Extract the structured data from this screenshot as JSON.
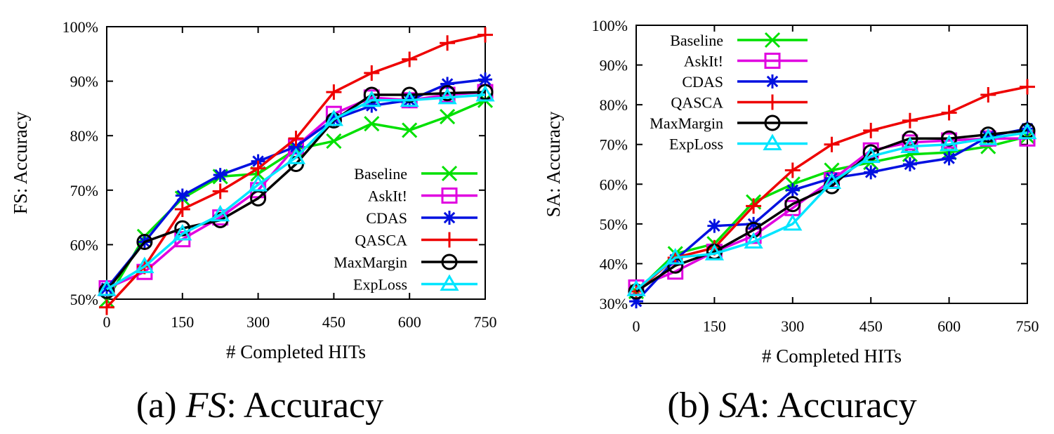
{
  "chart_data": [
    {
      "type": "line",
      "caption": {
        "prefix": "(a)",
        "italic": "FS",
        "rest": ": Accuracy"
      },
      "xlabel": "# Completed HITs",
      "ylabel": "FS: Accuracy",
      "xlim": [
        0,
        750
      ],
      "ylim": [
        50,
        100
      ],
      "x_ticks": [
        "0",
        "150",
        "300",
        "450",
        "600",
        "750"
      ],
      "y_ticks": [
        "50%",
        "60%",
        "70%",
        "80%",
        "90%",
        "100%"
      ],
      "grid": false,
      "legend_position": "bottom-right",
      "x": [
        0,
        75,
        150,
        225,
        300,
        375,
        450,
        525,
        600,
        675,
        750
      ],
      "series": [
        {
          "name": "Baseline",
          "color": "#00e000",
          "marker": "x",
          "values": [
            49.8,
            61.5,
            68.5,
            72.5,
            73.0,
            77.5,
            79.0,
            82.2,
            81.0,
            83.5,
            86.5
          ]
        },
        {
          "name": "AskIt!",
          "color": "#e000e0",
          "marker": "square",
          "values": [
            52.0,
            55.0,
            61.0,
            65.0,
            70.0,
            78.0,
            84.0,
            87.0,
            86.5,
            87.5,
            88.0
          ]
        },
        {
          "name": "CDAS",
          "color": "#0010e0",
          "marker": "asterisk",
          "values": [
            52.0,
            60.5,
            69.0,
            72.8,
            75.3,
            78.0,
            83.0,
            85.5,
            86.5,
            89.5,
            90.3
          ]
        },
        {
          "name": "QASCA",
          "color": "#ee0000",
          "marker": "plus",
          "values": [
            48.5,
            56.0,
            66.5,
            69.8,
            74.0,
            79.5,
            88.0,
            91.5,
            94.0,
            97.0,
            98.5
          ]
        },
        {
          "name": "MaxMargin",
          "color": "#000000",
          "marker": "circle",
          "values": [
            51.5,
            60.5,
            63.0,
            64.5,
            68.5,
            74.8,
            82.8,
            87.5,
            87.5,
            87.8,
            88.0
          ]
        },
        {
          "name": "ExpLoss",
          "color": "#00e5ff",
          "marker": "triangle",
          "values": [
            51.8,
            56.0,
            62.0,
            65.5,
            71.0,
            76.0,
            83.0,
            86.5,
            86.5,
            87.0,
            87.5
          ]
        }
      ]
    },
    {
      "type": "line",
      "caption": {
        "prefix": "(b)",
        "italic": "SA",
        "rest": ": Accuracy"
      },
      "xlabel": "# Completed HITs",
      "ylabel": "SA: Accuracy",
      "xlim": [
        0,
        750
      ],
      "ylim": [
        30,
        100
      ],
      "x_ticks": [
        "0",
        "150",
        "300",
        "450",
        "600",
        "750"
      ],
      "y_ticks": [
        "30%",
        "40%",
        "50%",
        "60%",
        "70%",
        "80%",
        "90%",
        "100%"
      ],
      "grid": false,
      "legend_position": "top-left",
      "x": [
        0,
        75,
        150,
        225,
        300,
        375,
        450,
        525,
        600,
        675,
        750
      ],
      "series": [
        {
          "name": "Baseline",
          "color": "#00e000",
          "marker": "x",
          "values": [
            33.0,
            42.5,
            45.0,
            55.5,
            60.0,
            63.5,
            65.5,
            67.5,
            68.0,
            69.5,
            72.0
          ]
        },
        {
          "name": "AskIt!",
          "color": "#e000e0",
          "marker": "square",
          "values": [
            34.0,
            38.0,
            43.0,
            47.0,
            54.0,
            61.0,
            68.5,
            70.5,
            71.0,
            71.5,
            71.5
          ]
        },
        {
          "name": "CDAS",
          "color": "#0010e0",
          "marker": "asterisk",
          "values": [
            30.5,
            41.0,
            49.5,
            50.0,
            58.5,
            61.5,
            63.0,
            65.0,
            66.5,
            72.0,
            74.0
          ]
        },
        {
          "name": "QASCA",
          "color": "#ee0000",
          "marker": "plus",
          "values": [
            33.0,
            41.5,
            44.0,
            54.5,
            63.5,
            70.0,
            73.5,
            76.0,
            78.0,
            82.5,
            84.5
          ]
        },
        {
          "name": "MaxMargin",
          "color": "#000000",
          "marker": "circle",
          "values": [
            33.0,
            39.5,
            43.0,
            48.5,
            55.0,
            59.5,
            68.0,
            71.5,
            71.5,
            72.5,
            73.5
          ]
        },
        {
          "name": "ExpLoss",
          "color": "#00e5ff",
          "marker": "triangle",
          "values": [
            33.5,
            41.5,
            42.5,
            45.5,
            50.0,
            60.5,
            67.0,
            69.5,
            70.0,
            71.5,
            73.0
          ]
        }
      ]
    }
  ]
}
